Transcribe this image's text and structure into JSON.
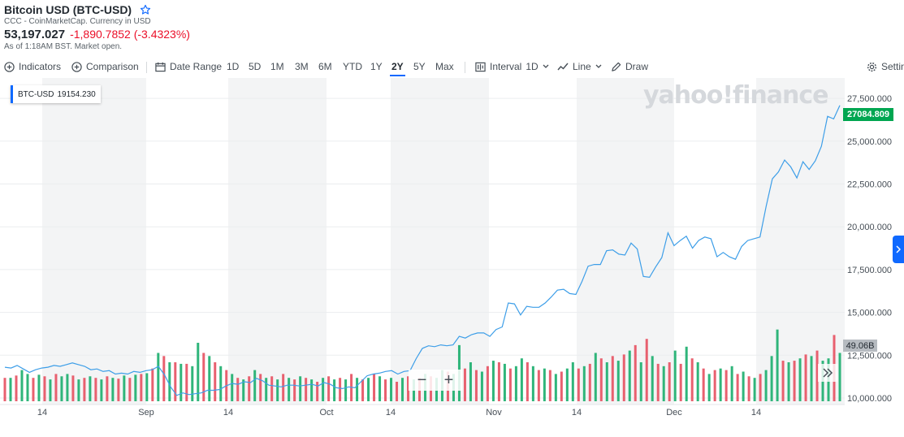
{
  "header": {
    "title": "Bitcoin USD (BTC-USD)",
    "subtitle": "CCC - CoinMarketCap. Currency in USD",
    "price": "53,197.027",
    "change": "-1,890.7852 (-3.4323%)",
    "market_status": "As of 1:18AM BST. Market open."
  },
  "toolbar": {
    "indicators_label": "Indicators",
    "comparison_label": "Comparison",
    "date_range_label": "Date Range",
    "ranges": [
      "1D",
      "5D",
      "1M",
      "3M",
      "6M",
      "YTD",
      "1Y",
      "2Y",
      "5Y",
      "Max"
    ],
    "active_range": "2Y",
    "interval_label": "Interval",
    "interval_value": "1D",
    "chart_type_label": "Line",
    "draw_label": "Draw",
    "settings_label": "Settin"
  },
  "legend": {
    "symbol": "BTC-USD",
    "value": "19154.230"
  },
  "watermark": "yahoo!finance",
  "current_price_tag": "27084.809",
  "volume_tag": "49.06B",
  "colors": {
    "line": "#3d9ee8",
    "volume_up": "#2fb57a",
    "volume_down": "#e8606f",
    "price_tag": "#00a651",
    "accent": "#0f69ff",
    "shade_band": "#f3f4f5"
  },
  "chart_data": {
    "type": "line",
    "x_tick_labels": [
      "14",
      "Sep",
      "14",
      "Oct",
      "14",
      "Nov",
      "14",
      "Dec",
      "14"
    ],
    "y_tick_labels": [
      "27,500.000",
      "25,000.000",
      "22,500.000",
      "20,000.000",
      "17,500.000",
      "15,000.000",
      "12,500.000",
      "10,000.000"
    ],
    "ylim": [
      10000,
      28500
    ],
    "grid": true,
    "series": [
      {
        "values": [
          11800,
          11750,
          11900,
          11700,
          11500,
          11650,
          11750,
          11800,
          11900,
          11850,
          11950,
          12050,
          11950,
          11850,
          11650,
          11700,
          11550,
          11600,
          11400,
          11450,
          11400,
          11550,
          11500,
          11600,
          11650,
          11850,
          11350,
          10650,
          10150,
          10300,
          10200,
          10250,
          10300,
          10450,
          10450,
          10500,
          10700,
          10850,
          10800,
          10950,
          10900,
          11150,
          11000,
          10750,
          10700,
          10650,
          10750,
          10750,
          10700,
          10750,
          10800,
          10700,
          10900,
          10800,
          10600,
          10550,
          10650,
          10600,
          10950,
          11300,
          11400,
          11450,
          11550,
          11600,
          11400,
          11550,
          11600,
          12300,
          12900,
          13050,
          13000,
          13100,
          13050,
          13100,
          13600,
          13500,
          13700,
          13800,
          13800,
          13600,
          14000,
          14150,
          15550,
          15500,
          14850,
          15350,
          15300,
          15300,
          15550,
          15900,
          16300,
          16350,
          16100,
          16050,
          16800,
          17700,
          17800,
          17800,
          18600,
          18650,
          18400,
          18350,
          19050,
          18700,
          17100,
          17050,
          17650,
          18200,
          19650,
          18900,
          19200,
          19450,
          18750,
          19200,
          19400,
          19300,
          18250,
          18500,
          18250,
          18100,
          18850,
          19200,
          19300,
          19400,
          21200,
          22800,
          23200,
          23900,
          23500,
          22850,
          23800,
          23350,
          23850,
          24700,
          26450,
          26300,
          27084.809
        ]
      }
    ],
    "volume_bars": [
      {
        "up": false,
        "h": 0.3
      },
      {
        "up": true,
        "h": 0.3
      },
      {
        "up": false,
        "h": 0.33
      },
      {
        "up": true,
        "h": 0.4
      },
      {
        "up": true,
        "h": 0.35
      },
      {
        "up": false,
        "h": 0.3
      },
      {
        "up": true,
        "h": 0.34
      },
      {
        "up": false,
        "h": 0.32
      },
      {
        "up": true,
        "h": 0.28
      },
      {
        "up": false,
        "h": 0.35
      },
      {
        "up": true,
        "h": 0.32
      },
      {
        "up": true,
        "h": 0.35
      },
      {
        "up": false,
        "h": 0.33
      },
      {
        "up": true,
        "h": 0.28
      },
      {
        "up": false,
        "h": 0.3
      },
      {
        "up": true,
        "h": 0.32
      },
      {
        "up": false,
        "h": 0.3
      },
      {
        "up": true,
        "h": 0.28
      },
      {
        "up": false,
        "h": 0.32
      },
      {
        "up": true,
        "h": 0.3
      },
      {
        "up": false,
        "h": 0.29
      },
      {
        "up": true,
        "h": 0.33
      },
      {
        "up": false,
        "h": 0.3
      },
      {
        "up": true,
        "h": 0.34
      },
      {
        "up": false,
        "h": 0.35
      },
      {
        "up": true,
        "h": 0.36
      },
      {
        "up": false,
        "h": 0.42
      },
      {
        "up": true,
        "h": 0.62
      },
      {
        "up": false,
        "h": 0.58
      },
      {
        "up": true,
        "h": 0.5
      },
      {
        "up": false,
        "h": 0.5
      },
      {
        "up": true,
        "h": 0.48
      },
      {
        "up": false,
        "h": 0.48
      },
      {
        "up": true,
        "h": 0.45
      },
      {
        "up": true,
        "h": 0.75
      },
      {
        "up": false,
        "h": 0.62
      },
      {
        "up": true,
        "h": 0.58
      },
      {
        "up": false,
        "h": 0.5
      },
      {
        "up": true,
        "h": 0.45
      },
      {
        "up": false,
        "h": 0.4
      },
      {
        "up": true,
        "h": 0.35
      },
      {
        "up": false,
        "h": 0.3
      },
      {
        "up": true,
        "h": 0.28
      },
      {
        "up": false,
        "h": 0.32
      },
      {
        "up": true,
        "h": 0.4
      },
      {
        "up": false,
        "h": 0.35
      },
      {
        "up": true,
        "h": 0.3
      },
      {
        "up": false,
        "h": 0.32
      },
      {
        "up": true,
        "h": 0.28
      },
      {
        "up": false,
        "h": 0.35
      },
      {
        "up": true,
        "h": 0.3
      },
      {
        "up": false,
        "h": 0.28
      },
      {
        "up": true,
        "h": 0.32
      },
      {
        "up": false,
        "h": 0.3
      },
      {
        "up": true,
        "h": 0.28
      },
      {
        "up": false,
        "h": 0.25
      },
      {
        "up": true,
        "h": 0.3
      },
      {
        "up": false,
        "h": 0.32
      },
      {
        "up": true,
        "h": 0.28
      },
      {
        "up": false,
        "h": 0.3
      },
      {
        "up": true,
        "h": 0.28
      },
      {
        "up": false,
        "h": 0.35
      },
      {
        "up": true,
        "h": 0.3
      },
      {
        "up": false,
        "h": 0.28
      },
      {
        "up": true,
        "h": 0.3
      },
      {
        "up": false,
        "h": 0.35
      },
      {
        "up": true,
        "h": 0.32
      },
      {
        "up": false,
        "h": 0.28
      },
      {
        "up": true,
        "h": 0.3
      },
      {
        "up": false,
        "h": 0.25
      },
      {
        "up": true,
        "h": 0.3
      },
      {
        "up": false,
        "h": 0.32
      },
      {
        "up": true,
        "h": 0.28
      },
      {
        "up": false,
        "h": 0.3
      },
      {
        "up": true,
        "h": 0.35
      },
      {
        "up": false,
        "h": 0.32
      },
      {
        "up": true,
        "h": 0.3
      },
      {
        "up": true,
        "h": 0.4
      },
      {
        "up": false,
        "h": 0.38
      },
      {
        "up": true,
        "h": 0.35
      },
      {
        "up": true,
        "h": 0.72
      },
      {
        "up": false,
        "h": 0.42
      },
      {
        "up": true,
        "h": 0.5
      },
      {
        "up": false,
        "h": 0.4
      },
      {
        "up": true,
        "h": 0.38
      },
      {
        "up": false,
        "h": 0.45
      },
      {
        "up": true,
        "h": 0.52
      },
      {
        "up": false,
        "h": 0.5
      },
      {
        "up": true,
        "h": 0.48
      },
      {
        "up": false,
        "h": 0.42
      },
      {
        "up": true,
        "h": 0.45
      },
      {
        "up": true,
        "h": 0.55
      },
      {
        "up": false,
        "h": 0.5
      },
      {
        "up": true,
        "h": 0.45
      },
      {
        "up": false,
        "h": 0.4
      },
      {
        "up": true,
        "h": 0.42
      },
      {
        "up": false,
        "h": 0.4
      },
      {
        "up": true,
        "h": 0.35
      },
      {
        "up": false,
        "h": 0.38
      },
      {
        "up": true,
        "h": 0.42
      },
      {
        "up": true,
        "h": 0.5
      },
      {
        "up": false,
        "h": 0.42
      },
      {
        "up": true,
        "h": 0.45
      },
      {
        "up": false,
        "h": 0.48
      },
      {
        "up": true,
        "h": 0.62
      },
      {
        "up": false,
        "h": 0.55
      },
      {
        "up": true,
        "h": 0.5
      },
      {
        "up": false,
        "h": 0.58
      },
      {
        "up": true,
        "h": 0.52
      },
      {
        "up": false,
        "h": 0.6
      },
      {
        "up": true,
        "h": 0.65
      },
      {
        "up": false,
        "h": 0.72
      },
      {
        "up": true,
        "h": 0.5
      },
      {
        "up": false,
        "h": 0.8
      },
      {
        "up": true,
        "h": 0.58
      },
      {
        "up": false,
        "h": 0.48
      },
      {
        "up": true,
        "h": 0.45
      },
      {
        "up": false,
        "h": 0.5
      },
      {
        "up": true,
        "h": 0.65
      },
      {
        "up": false,
        "h": 0.48
      },
      {
        "up": true,
        "h": 0.7
      },
      {
        "up": false,
        "h": 0.55
      },
      {
        "up": true,
        "h": 0.5
      },
      {
        "up": false,
        "h": 0.42
      },
      {
        "up": true,
        "h": 0.35
      },
      {
        "up": false,
        "h": 0.4
      },
      {
        "up": true,
        "h": 0.42
      },
      {
        "up": false,
        "h": 0.4
      },
      {
        "up": true,
        "h": 0.45
      },
      {
        "up": false,
        "h": 0.35
      },
      {
        "up": true,
        "h": 0.38
      },
      {
        "up": false,
        "h": 0.32
      },
      {
        "up": true,
        "h": 0.3
      },
      {
        "up": false,
        "h": 0.35
      },
      {
        "up": true,
        "h": 0.4
      },
      {
        "up": true,
        "h": 0.58
      },
      {
        "up": true,
        "h": 0.92
      },
      {
        "up": false,
        "h": 0.52
      },
      {
        "up": true,
        "h": 0.5
      },
      {
        "up": false,
        "h": 0.52
      },
      {
        "up": true,
        "h": 0.55
      },
      {
        "up": false,
        "h": 0.6
      },
      {
        "up": true,
        "h": 0.58
      },
      {
        "up": false,
        "h": 0.65
      },
      {
        "up": true,
        "h": 0.52
      },
      {
        "up": true,
        "h": 0.55
      },
      {
        "up": false,
        "h": 0.85
      },
      {
        "up": true,
        "h": 0.62
      }
    ]
  }
}
